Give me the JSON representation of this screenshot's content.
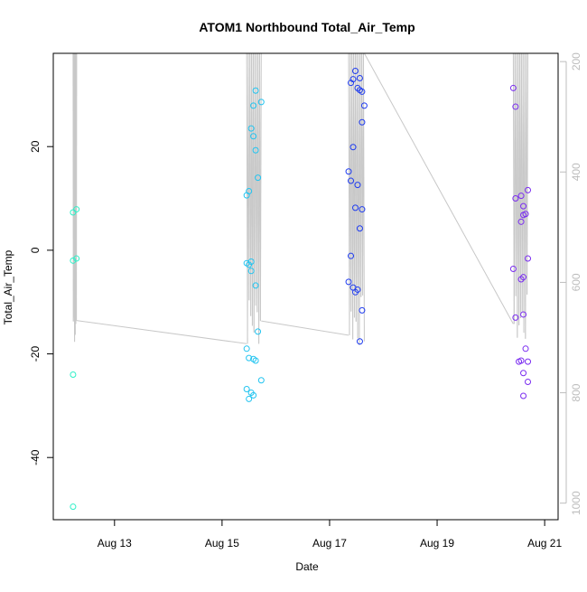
{
  "chart_data": {
    "type": "scatter",
    "title": "ATOM1 Northbound Total_Air_Temp",
    "xlabel": "Date",
    "ylabel": "Total_Air_Temp",
    "x_ticks": [
      "Aug 13",
      "Aug 15",
      "Aug 17",
      "Aug 19",
      "Aug 21"
    ],
    "x_tick_values": [
      "2016-08-13",
      "2016-08-15",
      "2016-08-17",
      "2016-08-19",
      "2016-08-21"
    ],
    "xlim": [
      "2016-08-11T20:40",
      "2016-08-21T06:00"
    ],
    "y_ticks": [
      -40,
      -20,
      0,
      20
    ],
    "ylim": [
      -52,
      38
    ],
    "y2_ticks": [
      200,
      400,
      600,
      800,
      1000
    ],
    "y2lim": [
      1030,
      185
    ],
    "grid": false,
    "line_color": "#c8c8c8",
    "series": [
      {
        "color": "#2ff0c8",
        "points": [
          [
            "2016-08-12T05:30",
            7.3
          ],
          [
            "2016-08-12T05:30",
            -2.0
          ],
          [
            "2016-08-12T05:30",
            -24.0
          ],
          [
            "2016-08-12T05:30",
            -49.5
          ],
          [
            "2016-08-12T07:00",
            7.9
          ],
          [
            "2016-08-12T07:00",
            -1.6
          ]
        ]
      },
      {
        "color": "#22c4f0",
        "points": [
          [
            "2016-08-15T11:00",
            10.6
          ],
          [
            "2016-08-15T11:00",
            -2.5
          ],
          [
            "2016-08-15T11:00",
            -19.0
          ],
          [
            "2016-08-15T11:00",
            -26.8
          ],
          [
            "2016-08-15T12:00",
            11.4
          ],
          [
            "2016-08-15T12:00",
            -2.8
          ],
          [
            "2016-08-15T12:00",
            -20.8
          ],
          [
            "2016-08-15T12:00",
            -28.7
          ],
          [
            "2016-08-15T13:00",
            23.5
          ],
          [
            "2016-08-15T13:00",
            -2.2
          ],
          [
            "2016-08-15T13:00",
            -4.0
          ],
          [
            "2016-08-15T13:00",
            -27.5
          ],
          [
            "2016-08-15T14:00",
            27.9
          ],
          [
            "2016-08-15T14:00",
            22.0
          ],
          [
            "2016-08-15T14:00",
            -21.0
          ],
          [
            "2016-08-15T14:00",
            -28.0
          ],
          [
            "2016-08-15T15:00",
            30.8
          ],
          [
            "2016-08-15T15:00",
            19.3
          ],
          [
            "2016-08-15T15:00",
            -6.8
          ],
          [
            "2016-08-15T15:00",
            -21.3
          ],
          [
            "2016-08-15T16:00",
            14.0
          ],
          [
            "2016-08-15T16:00",
            -15.7
          ],
          [
            "2016-08-15T17:30",
            28.6
          ],
          [
            "2016-08-15T17:30",
            -25.1
          ]
        ]
      },
      {
        "color": "#1f3cf0",
        "points": [
          [
            "2016-08-17T08:30",
            15.2
          ],
          [
            "2016-08-17T08:30",
            -6.1
          ],
          [
            "2016-08-17T09:30",
            32.3
          ],
          [
            "2016-08-17T09:30",
            13.4
          ],
          [
            "2016-08-17T09:30",
            -1.1
          ],
          [
            "2016-08-17T10:30",
            33.0
          ],
          [
            "2016-08-17T10:30",
            19.9
          ],
          [
            "2016-08-17T10:30",
            -7.2
          ],
          [
            "2016-08-17T11:30",
            34.6
          ],
          [
            "2016-08-17T11:30",
            8.2
          ],
          [
            "2016-08-17T11:30",
            -8.1
          ],
          [
            "2016-08-17T12:30",
            31.3
          ],
          [
            "2016-08-17T12:30",
            12.6
          ],
          [
            "2016-08-17T12:30",
            -7.6
          ],
          [
            "2016-08-17T13:30",
            33.2
          ],
          [
            "2016-08-17T13:30",
            30.9
          ],
          [
            "2016-08-17T13:30",
            4.2
          ],
          [
            "2016-08-17T13:30",
            -17.6
          ],
          [
            "2016-08-17T14:30",
            30.6
          ],
          [
            "2016-08-17T14:30",
            24.7
          ],
          [
            "2016-08-17T14:30",
            7.9
          ],
          [
            "2016-08-17T14:30",
            -11.6
          ],
          [
            "2016-08-17T15:30",
            27.9
          ]
        ]
      },
      {
        "color": "#7a2cf0",
        "points": [
          [
            "2016-08-20T10:00",
            31.3
          ],
          [
            "2016-08-20T10:00",
            -3.6
          ],
          [
            "2016-08-20T11:00",
            27.7
          ],
          [
            "2016-08-20T11:00",
            10.0
          ],
          [
            "2016-08-20T11:00",
            -13.0
          ],
          [
            "2016-08-20T12:30",
            -21.5
          ],
          [
            "2016-08-20T13:30",
            10.5
          ],
          [
            "2016-08-20T13:30",
            5.5
          ],
          [
            "2016-08-20T13:30",
            -5.6
          ],
          [
            "2016-08-20T13:30",
            -21.3
          ],
          [
            "2016-08-20T14:30",
            8.5
          ],
          [
            "2016-08-20T14:30",
            6.8
          ],
          [
            "2016-08-20T14:30",
            -5.2
          ],
          [
            "2016-08-20T14:30",
            -12.4
          ],
          [
            "2016-08-20T14:30",
            -23.7
          ],
          [
            "2016-08-20T14:30",
            -28.1
          ],
          [
            "2016-08-20T15:30",
            7.0
          ],
          [
            "2016-08-20T15:30",
            -19.0
          ],
          [
            "2016-08-20T16:30",
            11.6
          ],
          [
            "2016-08-20T16:30",
            -1.6
          ],
          [
            "2016-08-20T16:30",
            -21.5
          ],
          [
            "2016-08-20T16:30",
            -25.4
          ]
        ]
      }
    ]
  }
}
